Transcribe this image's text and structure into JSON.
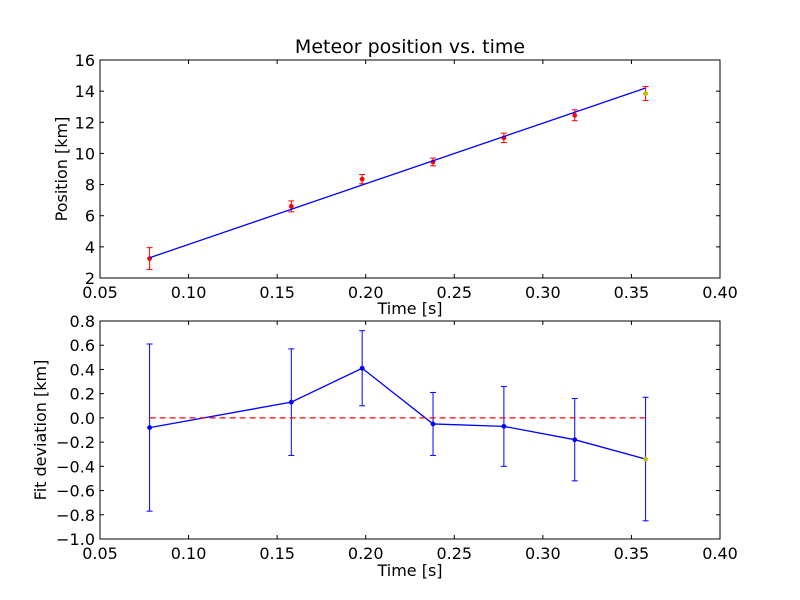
{
  "chart_data": [
    {
      "type": "scatter",
      "title": "Meteor position vs. time",
      "xlabel": "Time [s]",
      "ylabel": "Position [km]",
      "xlim": [
        0.05,
        0.4
      ],
      "ylim": [
        2,
        16
      ],
      "xticks": [
        "0.05",
        "0.10",
        "0.15",
        "0.20",
        "0.25",
        "0.30",
        "0.35",
        "0.40"
      ],
      "yticks": [
        "2",
        "4",
        "6",
        "8",
        "10",
        "12",
        "14",
        "16"
      ],
      "series": [
        {
          "kind": "errorbar-points",
          "x": [
            0.078,
            0.158,
            0.198,
            0.238,
            0.278,
            0.318,
            0.358
          ],
          "y": [
            3.25,
            6.6,
            8.35,
            9.45,
            11.0,
            12.45,
            13.85
          ],
          "yerr": [
            0.7,
            0.35,
            0.3,
            0.25,
            0.3,
            0.35,
            0.45
          ],
          "point_colors": [
            "#ff0000",
            "#ff0000",
            "#ff0000",
            "#ff0000",
            "#ff0000",
            "#ff0000",
            "#bfbf00"
          ],
          "errorbar_color": "#ff0000"
        },
        {
          "kind": "fit-line",
          "x": [
            0.078,
            0.358
          ],
          "y": [
            3.3,
            14.2
          ],
          "color": "#0000ff"
        }
      ],
      "grid": false
    },
    {
      "type": "line",
      "title": "",
      "xlabel": "Time [s]",
      "ylabel": "Fit deviation [km]",
      "xlim": [
        0.05,
        0.4
      ],
      "ylim": [
        -1.0,
        0.8
      ],
      "xticks": [
        "0.05",
        "0.10",
        "0.15",
        "0.20",
        "0.25",
        "0.30",
        "0.35",
        "0.40"
      ],
      "yticks": [
        "−1.0",
        "−0.8",
        "−0.6",
        "−0.4",
        "−0.2",
        "0.0",
        "0.2",
        "0.4",
        "0.6",
        "0.8"
      ],
      "series": [
        {
          "kind": "errorbar-line",
          "x": [
            0.078,
            0.158,
            0.198,
            0.238,
            0.278,
            0.318,
            0.358
          ],
          "y": [
            -0.08,
            0.13,
            0.41,
            -0.05,
            -0.07,
            -0.18,
            -0.34
          ],
          "yerr": [
            0.69,
            0.44,
            0.31,
            0.26,
            0.33,
            0.34,
            0.51
          ],
          "point_colors": [
            "#0000ff",
            "#0000ff",
            "#0000ff",
            "#0000ff",
            "#0000ff",
            "#0000ff",
            "#bfbf00"
          ],
          "color": "#0000ff"
        },
        {
          "kind": "reference-line",
          "x": [
            0.078,
            0.358
          ],
          "y": [
            0.0,
            0.0
          ],
          "color": "#ff0000",
          "style": "dashed"
        }
      ],
      "grid": false
    }
  ]
}
